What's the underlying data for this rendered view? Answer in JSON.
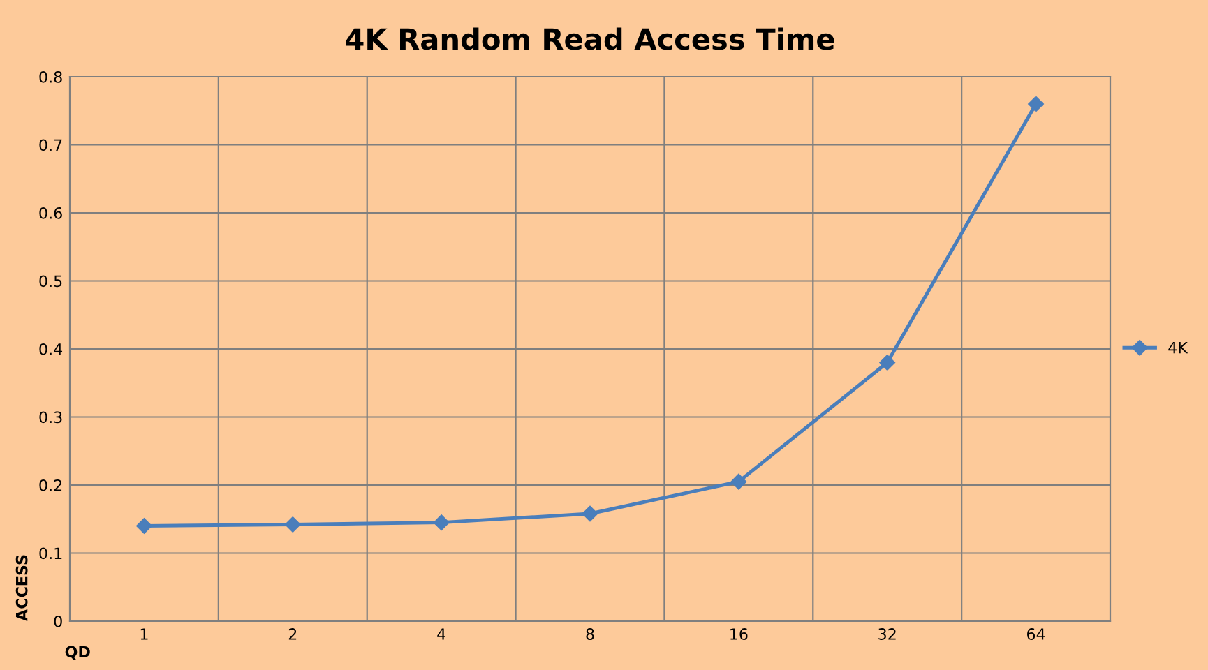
{
  "chart_data": {
    "type": "line",
    "title": "4K Random Read Access Time",
    "xlabel": "QD",
    "ylabel": "ACCESS",
    "categories": [
      "1",
      "2",
      "4",
      "8",
      "16",
      "32",
      "64"
    ],
    "series": [
      {
        "name": "4K",
        "color": "#4a7ebb",
        "values": [
          0.14,
          0.142,
          0.145,
          0.158,
          0.205,
          0.38,
          0.76
        ]
      }
    ],
    "ylim": [
      0,
      0.8
    ],
    "yticks": [
      0,
      0.1,
      0.2,
      0.3,
      0.4,
      0.5,
      0.6,
      0.7,
      0.8
    ],
    "grid": true,
    "legend": "right",
    "marker": "diamond",
    "line_style": "solid"
  }
}
